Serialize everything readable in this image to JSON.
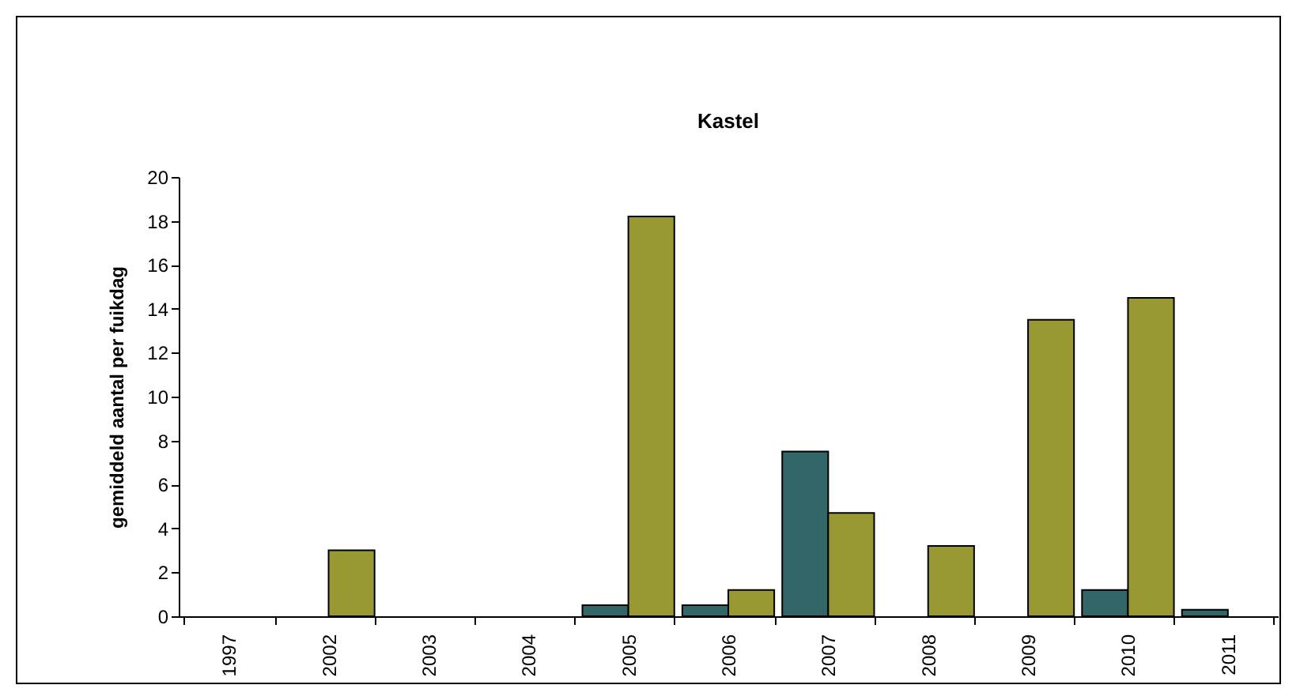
{
  "chart_data": {
    "type": "bar",
    "title": "Kastel",
    "ylabel": "gemiddeld aantal per fuikdag",
    "categories": [
      "1997",
      "2002",
      "2003",
      "2004",
      "2005",
      "2006",
      "2007",
      "2008",
      "2009",
      "2010",
      "2011"
    ],
    "series": [
      {
        "color": "#336666",
        "values": [
          null,
          null,
          null,
          null,
          0.5,
          0.5,
          7.5,
          null,
          null,
          1.2,
          0.3
        ]
      },
      {
        "color": "#999933",
        "values": [
          null,
          3.0,
          null,
          null,
          18.2,
          1.2,
          4.7,
          3.2,
          13.5,
          14.5,
          null
        ]
      }
    ],
    "ylim": [
      0,
      20
    ],
    "yticks": [
      0,
      2,
      4,
      6,
      8,
      10,
      12,
      14,
      16,
      18,
      20
    ],
    "grid": false,
    "legend": false
  }
}
